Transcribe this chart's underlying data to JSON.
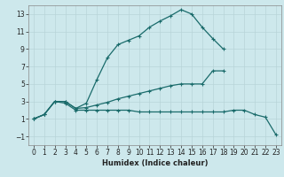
{
  "xlabel": "Humidex (Indice chaleur)",
  "bg_color": "#cde8ec",
  "grid_color": "#b8d4d8",
  "line_color": "#1a6b6b",
  "xlim": [
    -0.5,
    23.5
  ],
  "ylim": [
    -2.0,
    14.0
  ],
  "xticks": [
    0,
    1,
    2,
    3,
    4,
    5,
    6,
    7,
    8,
    9,
    10,
    11,
    12,
    13,
    14,
    15,
    16,
    17,
    18,
    19,
    20,
    21,
    22,
    23
  ],
  "yticks": [
    -1,
    1,
    3,
    5,
    7,
    9,
    11,
    13
  ],
  "line1_x": [
    0,
    1,
    2,
    3,
    4,
    5,
    6,
    7,
    8,
    9,
    10,
    11,
    12,
    13,
    14,
    15,
    16,
    17,
    18
  ],
  "line1_y": [
    1.0,
    1.5,
    3.0,
    3.0,
    2.2,
    2.8,
    5.5,
    8.0,
    9.5,
    10.0,
    10.5,
    11.5,
    12.2,
    12.8,
    13.5,
    13.0,
    11.5,
    10.2,
    9.0
  ],
  "line2_x": [
    0,
    1,
    2,
    3,
    4,
    5,
    6,
    7,
    8,
    9,
    10,
    11,
    12,
    13,
    14,
    15,
    16,
    17,
    18
  ],
  "line2_y": [
    1.0,
    1.5,
    3.0,
    3.0,
    2.2,
    2.3,
    2.6,
    2.9,
    3.3,
    3.6,
    3.9,
    4.2,
    4.5,
    4.8,
    5.0,
    5.0,
    5.0,
    6.5,
    6.5
  ],
  "line3_x": [
    0,
    1,
    2,
    3,
    4,
    5,
    6,
    7,
    8,
    9,
    10,
    11,
    12,
    13,
    14,
    15,
    16,
    17,
    18,
    19,
    20,
    21,
    22,
    23
  ],
  "line3_y": [
    1.0,
    1.5,
    3.0,
    2.8,
    2.0,
    2.0,
    2.0,
    2.0,
    2.0,
    2.0,
    1.8,
    1.8,
    1.8,
    1.8,
    1.8,
    1.8,
    1.8,
    1.8,
    1.8,
    2.0,
    2.0,
    1.5,
    1.2,
    -0.8
  ],
  "tick_fontsize": 5.5,
  "label_fontsize": 6.0
}
